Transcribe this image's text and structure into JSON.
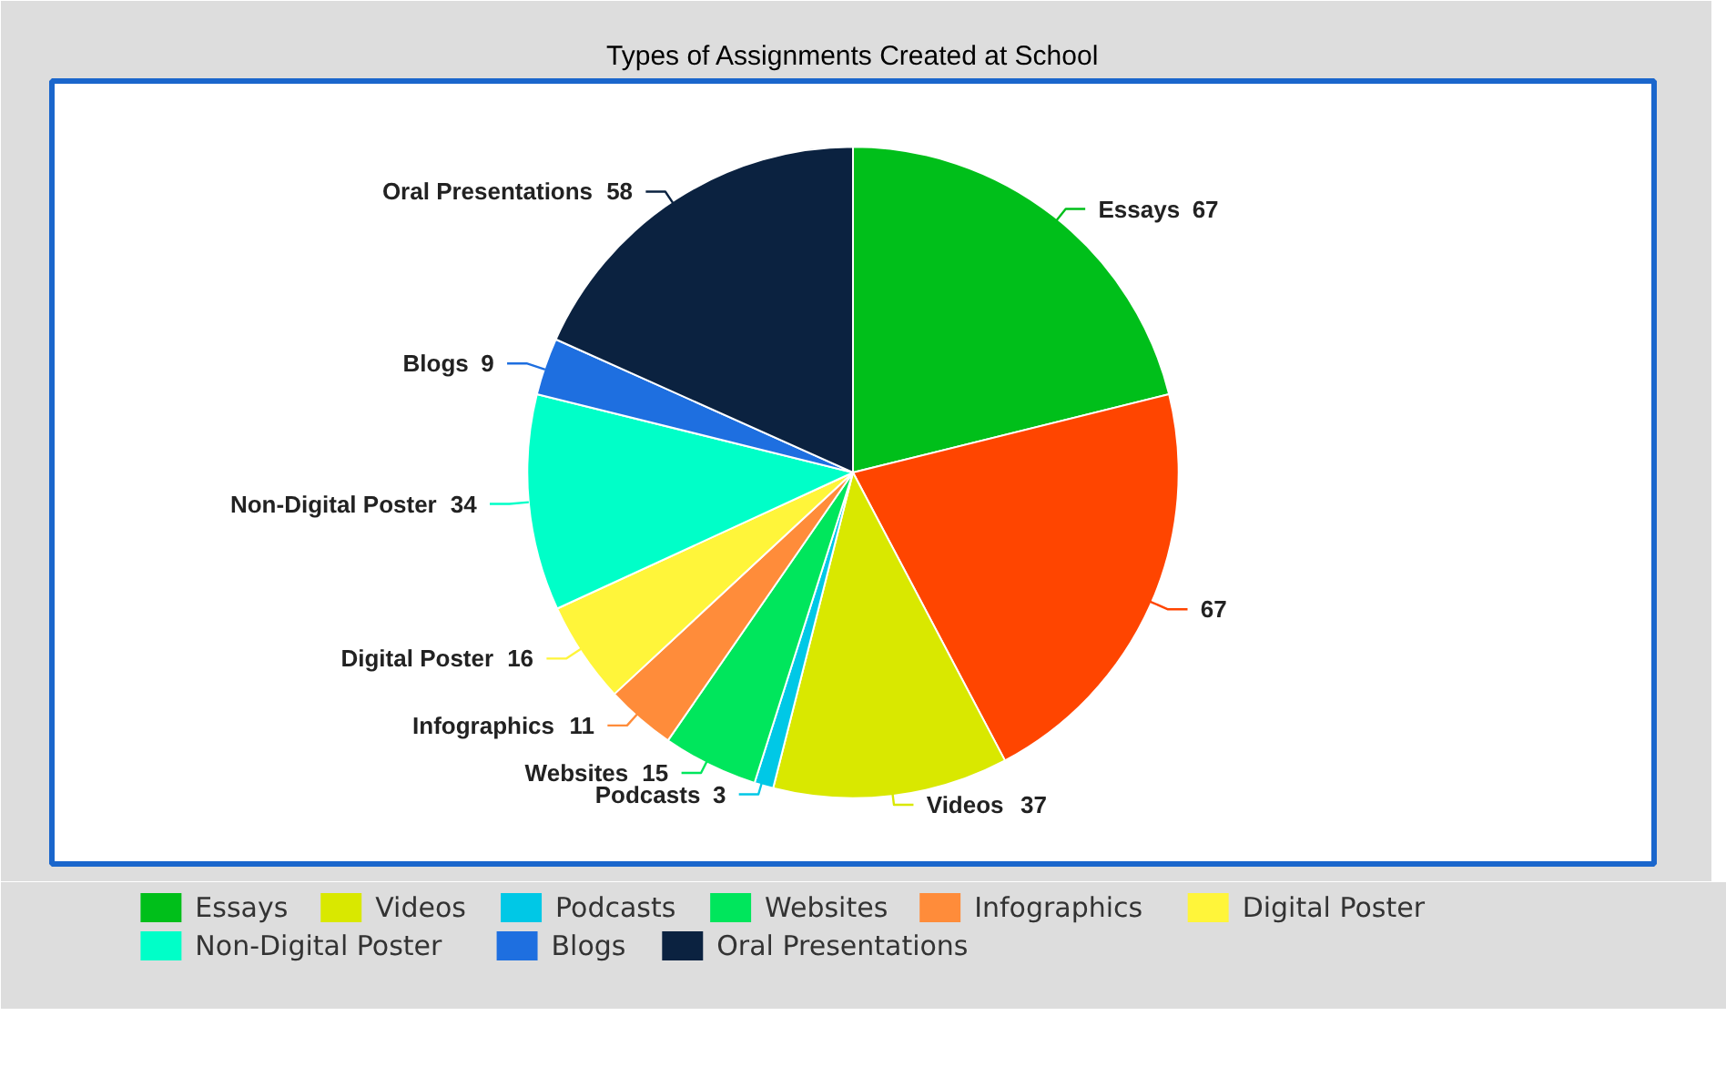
{
  "chart_data": {
    "type": "pie",
    "title": "Types of Assignments Created at School",
    "categories": [
      "Essays",
      null,
      "Videos",
      "Podcasts",
      "Websites",
      "Infographics",
      "Digital Poster",
      "Non-Digital Poster",
      "Blogs",
      "Oral Presentations"
    ],
    "values": [
      67,
      67,
      37,
      3,
      15,
      11,
      16,
      34,
      9,
      58
    ],
    "colors": [
      "#00bf1a",
      "#ff4500",
      "#d9e800",
      "#00c8e6",
      "#00e65c",
      "#ff8c3a",
      "#fff53a",
      "#00ffc8",
      "#1e6fe0",
      "#0b2240"
    ],
    "data_labels": true,
    "legend": "bottom"
  }
}
